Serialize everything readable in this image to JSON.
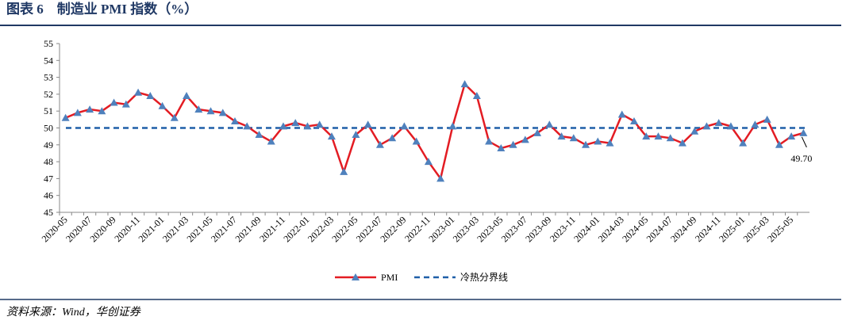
{
  "chart_data": {
    "type": "line",
    "title": "图表 6　制造业 PMI 指数（%）",
    "source": "资料来源：Wind，华创证券",
    "categories": [
      "2020-05",
      null,
      "2020-07",
      null,
      "2020-09",
      null,
      "2020-11",
      null,
      "2021-01",
      null,
      "2021-03",
      null,
      "2021-05",
      null,
      "2021-07",
      null,
      "2021-09",
      null,
      "2021-11",
      null,
      "2022-01",
      null,
      "2022-03",
      null,
      "2022-05",
      null,
      "2022-07",
      null,
      "2022-09",
      null,
      "2022-11",
      null,
      "2023-01",
      null,
      "2023-03",
      null,
      "2023-05",
      null,
      "2023-07",
      null,
      "2023-09",
      null,
      "2023-11",
      null,
      "2024-01",
      null,
      "2024-03",
      null,
      "2024-05",
      null,
      "2024-07",
      null,
      "2024-09",
      null,
      "2024-11",
      null,
      "2025-01",
      null,
      "2025-03",
      null,
      "2025-05",
      null
    ],
    "series": [
      {
        "name": "PMI",
        "color": "#e31c23",
        "marker_color": "#4f81bd",
        "values": [
          50.6,
          50.9,
          51.1,
          51.0,
          51.5,
          51.4,
          52.1,
          51.9,
          51.3,
          50.6,
          51.9,
          51.1,
          51.0,
          50.9,
          50.4,
          50.1,
          49.6,
          49.2,
          50.1,
          50.3,
          50.1,
          50.2,
          49.5,
          47.4,
          49.6,
          50.2,
          49.0,
          49.4,
          50.1,
          49.2,
          48.0,
          47.0,
          50.1,
          52.6,
          51.9,
          49.2,
          48.8,
          49.0,
          49.3,
          49.7,
          50.2,
          49.5,
          49.4,
          49.0,
          49.2,
          49.1,
          50.8,
          50.4,
          49.5,
          49.5,
          49.4,
          49.1,
          49.8,
          50.1,
          50.3,
          50.1,
          49.1,
          50.2,
          50.5,
          49.0,
          49.5,
          49.7
        ],
        "value_labels": [
          null,
          null,
          null,
          null,
          null,
          null,
          null,
          null,
          null,
          null,
          null,
          null,
          null,
          null,
          null,
          null,
          null,
          null,
          null,
          null,
          null,
          null,
          null,
          null,
          null,
          null,
          null,
          null,
          null,
          null,
          null,
          null,
          null,
          null,
          null,
          null,
          null,
          null,
          null,
          null,
          null,
          null,
          null,
          null,
          null,
          null,
          null,
          null,
          null,
          null,
          null,
          null,
          null,
          null,
          null,
          null,
          null,
          null,
          null,
          null,
          null,
          "49.70"
        ]
      }
    ],
    "reference_line": {
      "name": "冷热分界线",
      "value": 50,
      "color": "#1f5fa8",
      "dashed": true
    },
    "ylim": [
      45,
      55
    ],
    "yticks": [
      45,
      46,
      47,
      48,
      49,
      50,
      51,
      52,
      53,
      54,
      55
    ],
    "legend": "bottom"
  }
}
